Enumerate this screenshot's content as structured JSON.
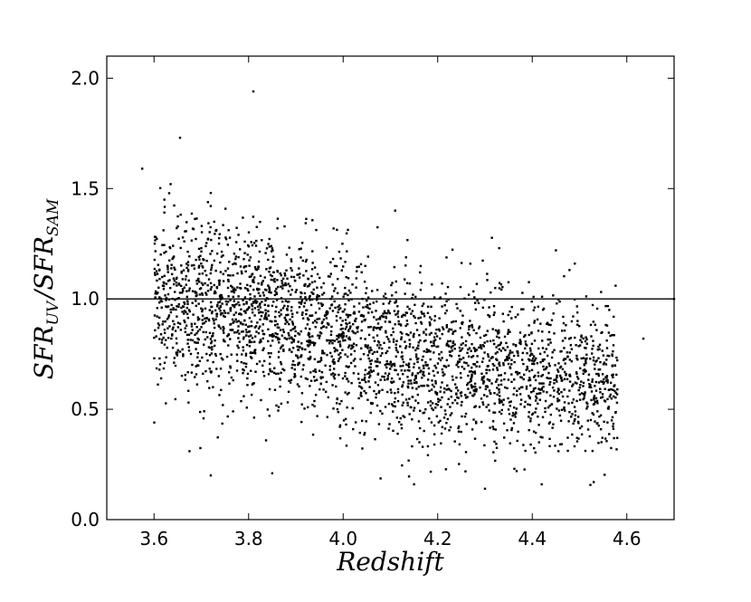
{
  "chart_data": {
    "type": "scatter",
    "title": "",
    "xlabel": "Redshift",
    "ylabel": {
      "parts": [
        {
          "text": "SFR",
          "sub": "UV"
        },
        {
          "text": "/"
        },
        {
          "text": "SFR",
          "sub": "SAM"
        }
      ]
    },
    "xlim": [
      3.5,
      4.7
    ],
    "ylim": [
      0.0,
      2.1
    ],
    "x_ticks": [
      3.6,
      3.8,
      4.0,
      4.2,
      4.4,
      4.6
    ],
    "x_tick_labels": [
      "3.6",
      "3.8",
      "4.0",
      "4.2",
      "4.4",
      "4.6"
    ],
    "y_ticks": [
      0.0,
      0.5,
      1.0,
      1.5,
      2.0
    ],
    "y_tick_labels": [
      "0.0",
      "0.5",
      "1.0",
      "1.5",
      "2.0"
    ],
    "grid": false,
    "reference_line": {
      "y": 1.0
    },
    "n_points": 3000,
    "distribution": {
      "x_range": [
        3.6,
        4.58
      ],
      "median_trend": [
        {
          "x": 3.6,
          "y": 1.0
        },
        {
          "x": 3.8,
          "y": 0.95
        },
        {
          "x": 4.0,
          "y": 0.82
        },
        {
          "x": 4.2,
          "y": 0.72
        },
        {
          "x": 4.4,
          "y": 0.66
        },
        {
          "x": 4.58,
          "y": 0.62
        }
      ],
      "spread_sd": 0.2
    },
    "series": [
      {
        "name": "",
        "color": "#000000",
        "points": [
          {
            "x": 3.575,
            "y": 1.59
          },
          {
            "x": 3.655,
            "y": 1.73
          },
          {
            "x": 3.81,
            "y": 1.94
          },
          {
            "x": 3.635,
            "y": 1.52
          },
          {
            "x": 3.72,
            "y": 1.48
          },
          {
            "x": 4.11,
            "y": 1.4
          },
          {
            "x": 4.33,
            "y": 1.23
          },
          {
            "x": 4.45,
            "y": 1.22
          },
          {
            "x": 4.49,
            "y": 1.16
          },
          {
            "x": 4.635,
            "y": 0.82
          },
          {
            "x": 4.7,
            "y": 1.0
          },
          {
            "x": 3.675,
            "y": 0.31
          },
          {
            "x": 3.72,
            "y": 0.2
          },
          {
            "x": 3.85,
            "y": 0.21
          },
          {
            "x": 4.15,
            "y": 0.16
          },
          {
            "x": 4.3,
            "y": 0.14
          },
          {
            "x": 4.42,
            "y": 0.16
          },
          {
            "x": 4.53,
            "y": 0.17
          },
          {
            "x": 3.615,
            "y": 0.64
          },
          {
            "x": 4.58,
            "y": 0.59
          }
        ]
      }
    ]
  }
}
